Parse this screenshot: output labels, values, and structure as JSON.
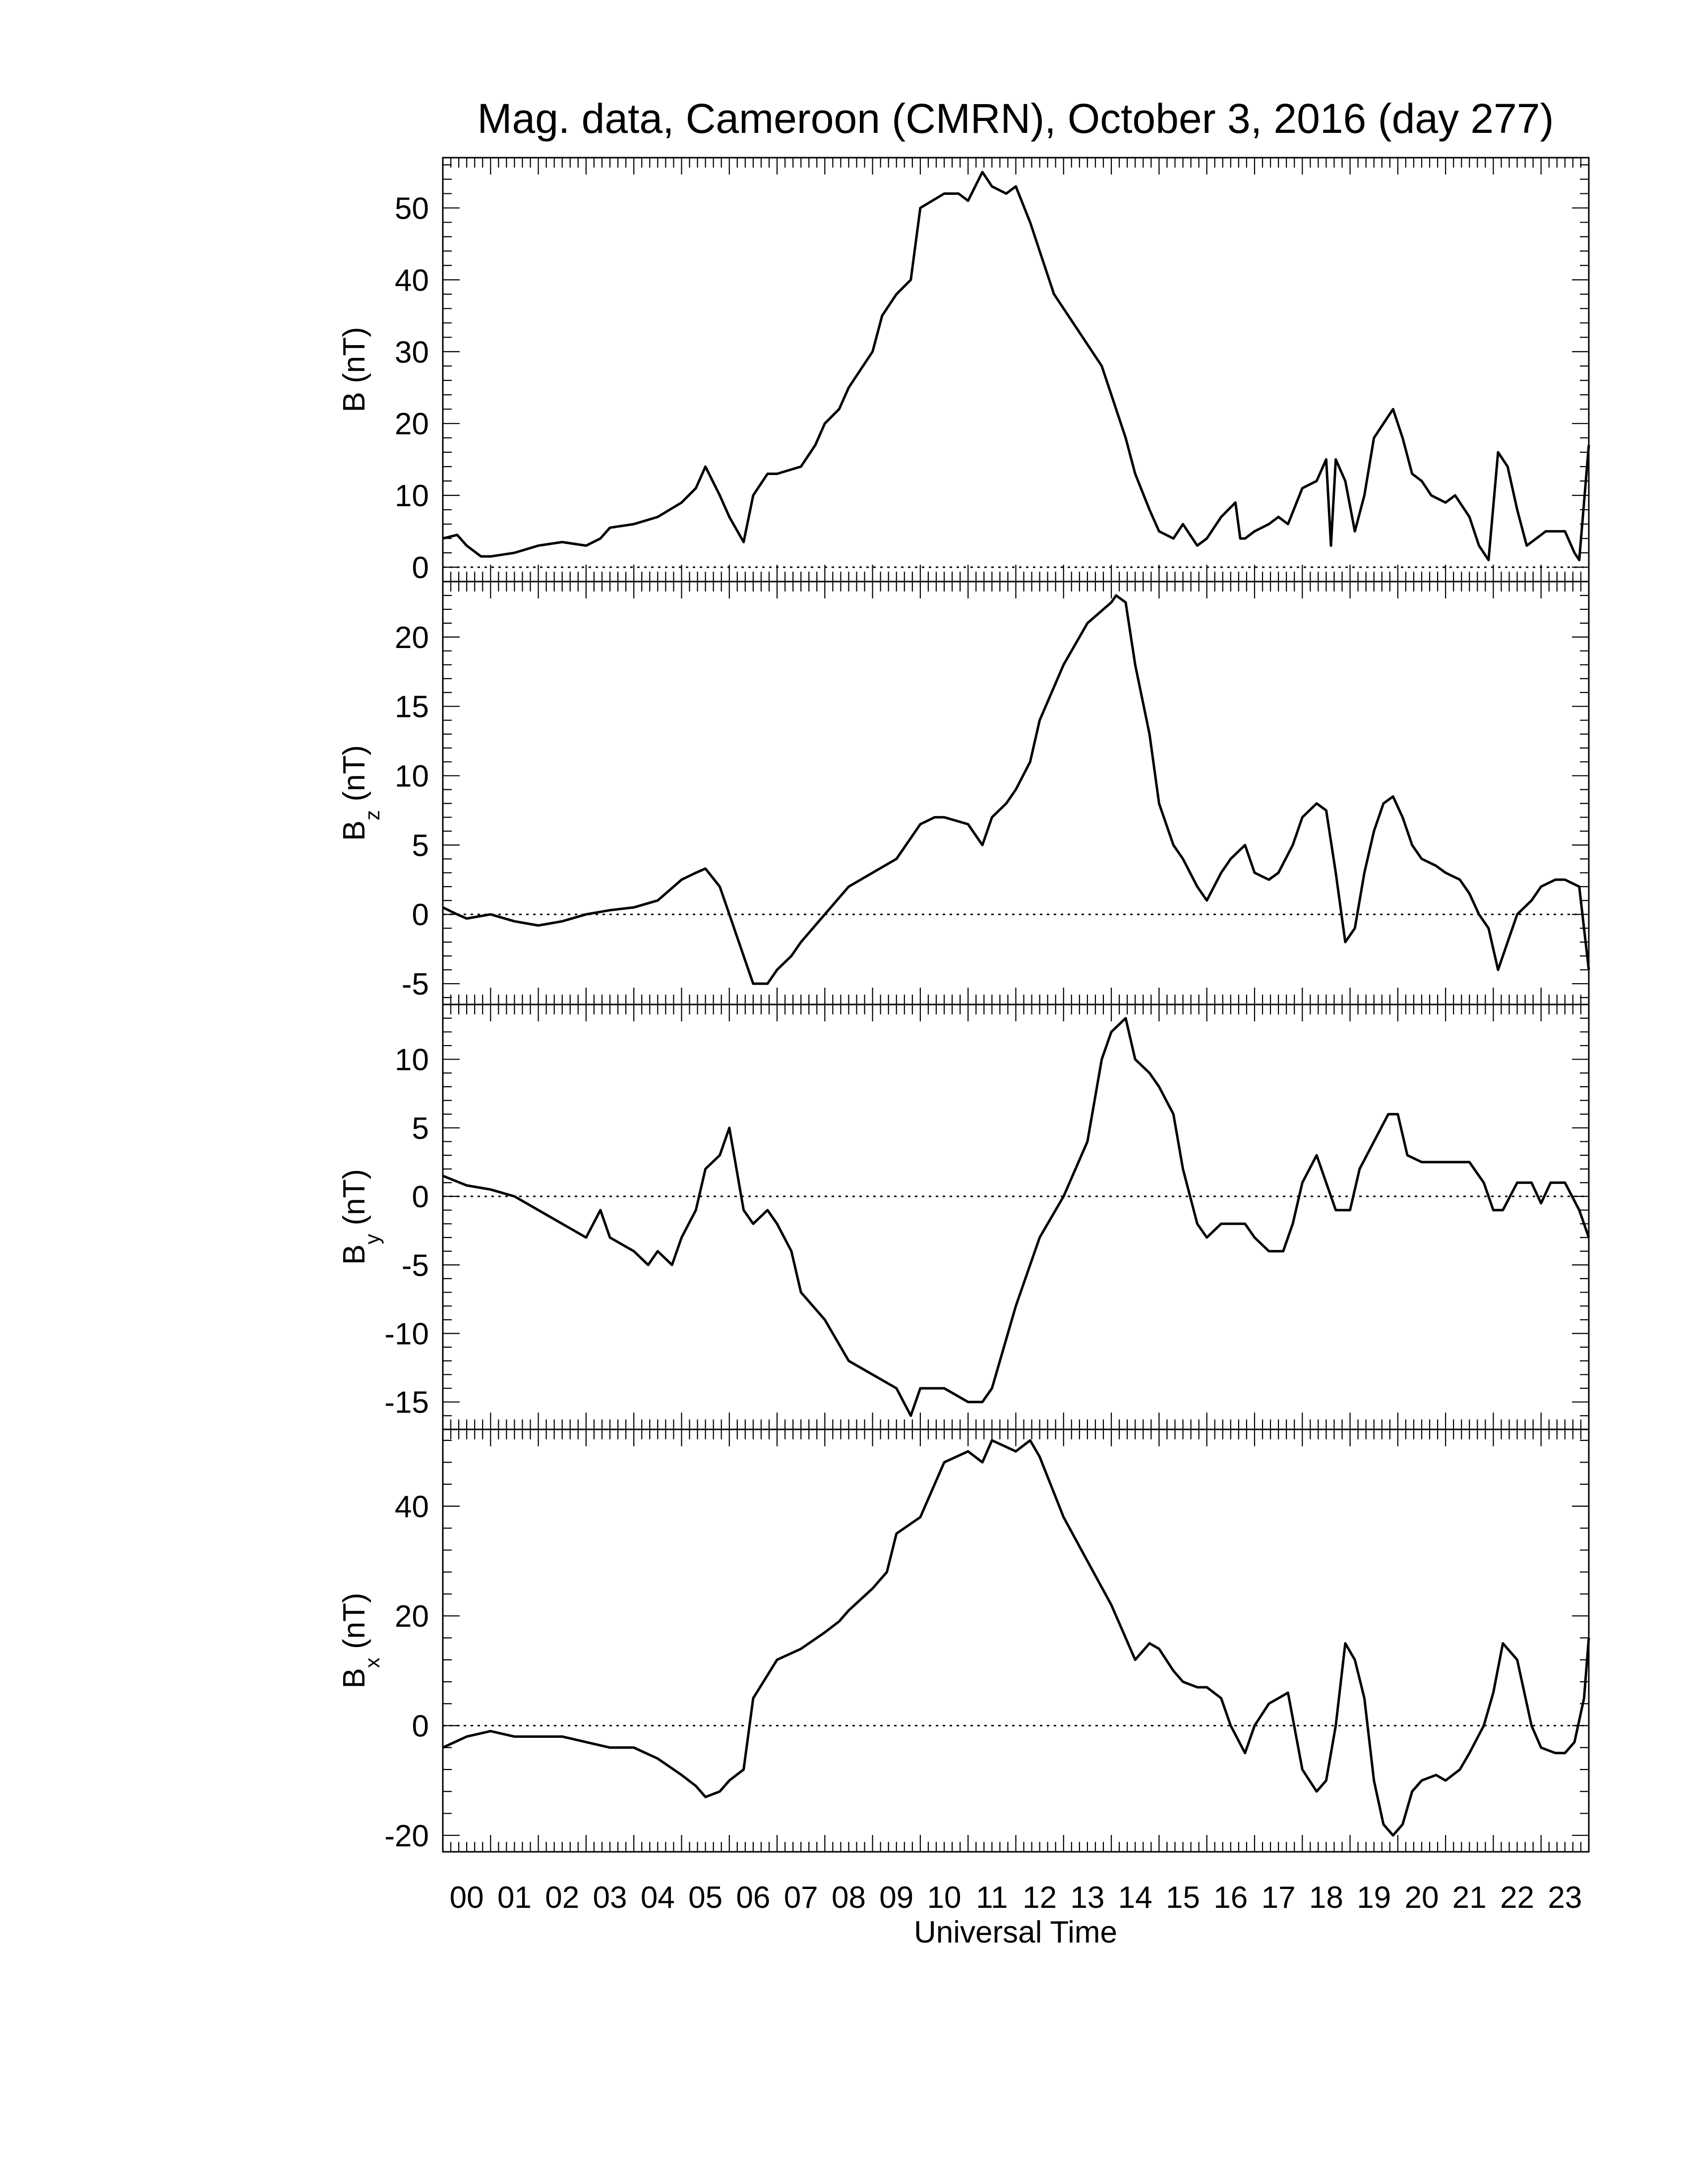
{
  "chart_data": {
    "type": "line",
    "title": "Mag. data, Cameroon (CMRN), October 3, 2016 (day 277)",
    "xlabel": "Universal Time",
    "x_unit": "hours",
    "xlim": [
      0,
      24
    ],
    "x_tick_labels": [
      "00",
      "01",
      "02",
      "03",
      "04",
      "05",
      "06",
      "07",
      "08",
      "09",
      "10",
      "11",
      "12",
      "13",
      "14",
      "15",
      "16",
      "17",
      "18",
      "19",
      "20",
      "21",
      "22",
      "23"
    ],
    "line_color": "#000000",
    "zero_line_style": "dotted",
    "panels": [
      {
        "name": "B",
        "ylabel_main": "B",
        "ylabel_sub": "",
        "ylabel_unit": "(nT)",
        "ylim": [
          -2,
          57
        ],
        "yticks": [
          0,
          10,
          20,
          30,
          40,
          50
        ],
        "zero_line": true,
        "x": [
          0,
          0.3,
          0.5,
          0.8,
          1,
          1.5,
          2,
          2.5,
          3,
          3.3,
          3.5,
          4,
          4.5,
          5,
          5.3,
          5.5,
          5.8,
          6,
          6.3,
          6.5,
          6.8,
          7,
          7.5,
          7.8,
          8,
          8.3,
          8.5,
          9,
          9.2,
          9.5,
          9.8,
          10,
          10.5,
          10.8,
          11,
          11.3,
          11.5,
          11.8,
          12,
          12.3,
          12.5,
          12.8,
          13,
          13.3,
          13.5,
          13.8,
          14,
          14.3,
          14.5,
          14.8,
          15,
          15.3,
          15.5,
          15.8,
          16,
          16.3,
          16.6,
          16.7,
          16.8,
          17,
          17.3,
          17.5,
          17.7,
          18,
          18.3,
          18.5,
          18.6,
          18.7,
          18.9,
          19.1,
          19.3,
          19.5,
          19.7,
          19.9,
          20.1,
          20.3,
          20.5,
          20.7,
          21,
          21.2,
          21.5,
          21.7,
          21.9,
          22.1,
          22.3,
          22.5,
          22.7,
          22.9,
          23.1,
          23.3,
          23.5,
          23.7,
          23.8,
          24
        ],
        "y": [
          4,
          4.5,
          3,
          1.5,
          1.5,
          2,
          3,
          3.5,
          3,
          4,
          5.5,
          6,
          7,
          9,
          11,
          14,
          10,
          7,
          3.5,
          10,
          13,
          13,
          14,
          17,
          20,
          22,
          25,
          30,
          35,
          38,
          40,
          50,
          52,
          52,
          51,
          55,
          53,
          52,
          53,
          48,
          44,
          38,
          36,
          33,
          31,
          28,
          24,
          18,
          13,
          8,
          5,
          4,
          6,
          3,
          4,
          7,
          9,
          4,
          4,
          5,
          6,
          7,
          6,
          11,
          12,
          15,
          3,
          15,
          12,
          5,
          10,
          18,
          20,
          22,
          18,
          13,
          12,
          10,
          9,
          10,
          7,
          3,
          1,
          16,
          14,
          8,
          3,
          4,
          5,
          5,
          5,
          2,
          1,
          17
        ]
      },
      {
        "name": "Bz",
        "ylabel_main": "B",
        "ylabel_sub": "z",
        "ylabel_unit": "(nT)",
        "ylim": [
          -6.5,
          24
        ],
        "yticks": [
          -5,
          0,
          5,
          10,
          15,
          20
        ],
        "zero_line": true,
        "x": [
          0,
          0.3,
          0.5,
          1,
          1.5,
          2,
          2.5,
          3,
          3.5,
          4,
          4.5,
          5,
          5.3,
          5.5,
          5.8,
          6,
          6.3,
          6.5,
          6.8,
          7,
          7.3,
          7.5,
          8,
          8.5,
          9,
          9.5,
          10,
          10.3,
          10.5,
          11,
          11.3,
          11.5,
          11.8,
          12,
          12.3,
          12.5,
          13,
          13.5,
          14,
          14.1,
          14.3,
          14.5,
          14.8,
          15,
          15.3,
          15.5,
          15.8,
          16,
          16.3,
          16.5,
          16.8,
          17,
          17.3,
          17.5,
          17.8,
          18,
          18.3,
          18.5,
          18.7,
          18.9,
          19.1,
          19.3,
          19.5,
          19.7,
          19.9,
          20.1,
          20.3,
          20.5,
          20.8,
          21,
          21.3,
          21.5,
          21.7,
          21.9,
          22.1,
          22.3,
          22.5,
          22.8,
          23,
          23.3,
          23.5,
          23.8,
          24
        ],
        "y": [
          0.5,
          0,
          -0.3,
          0,
          -0.5,
          -0.8,
          -0.5,
          0,
          0.3,
          0.5,
          1,
          2.5,
          3,
          3.3,
          2,
          0,
          -3,
          -5,
          -5,
          -4,
          -3,
          -2,
          0,
          2,
          3,
          4,
          6.5,
          7,
          7,
          6.5,
          5,
          7,
          8,
          9,
          11,
          14,
          18,
          21,
          22.5,
          23,
          22.5,
          18,
          13,
          8,
          5,
          4,
          2,
          1,
          3,
          4,
          5,
          3,
          2.5,
          3,
          5,
          7,
          8,
          7.5,
          3,
          -2,
          -1,
          3,
          6,
          8,
          8.5,
          7,
          5,
          4,
          3.5,
          3,
          2.5,
          1.5,
          0,
          -1,
          -4,
          -2,
          0,
          1,
          2,
          2.5,
          2.5,
          2,
          -4
        ]
      },
      {
        "name": "By",
        "ylabel_main": "B",
        "ylabel_sub": "y",
        "ylabel_unit": "(nT)",
        "ylim": [
          -17,
          14
        ],
        "yticks": [
          -15,
          -10,
          -5,
          0,
          5,
          10
        ],
        "zero_line": true,
        "x": [
          0,
          0.5,
          1,
          1.5,
          2,
          2.5,
          3,
          3.3,
          3.5,
          4,
          4.3,
          4.5,
          4.8,
          5,
          5.3,
          5.5,
          5.8,
          6,
          6.3,
          6.5,
          6.8,
          7,
          7.3,
          7.5,
          8,
          8.5,
          9,
          9.5,
          9.8,
          10,
          10.3,
          10.5,
          11,
          11.3,
          11.5,
          12,
          12.5,
          13,
          13.5,
          13.8,
          14,
          14.3,
          14.5,
          14.8,
          15,
          15.3,
          15.5,
          15.8,
          16,
          16.3,
          16.6,
          16.8,
          17,
          17.3,
          17.6,
          17.8,
          18,
          18.3,
          18.5,
          18.7,
          19,
          19.2,
          19.5,
          19.8,
          20,
          20.2,
          20.5,
          20.8,
          21,
          21.5,
          21.8,
          22,
          22.2,
          22.5,
          22.8,
          23,
          23.2,
          23.5,
          23.8,
          24
        ],
        "y": [
          1.5,
          0.8,
          0.5,
          0,
          -1,
          -2,
          -3,
          -1,
          -3,
          -4,
          -5,
          -4,
          -5,
          -3,
          -1,
          2,
          3,
          5,
          -1,
          -2,
          -1,
          -2,
          -4,
          -7,
          -9,
          -12,
          -13,
          -14,
          -16,
          -14,
          -14,
          -14,
          -15,
          -15,
          -14,
          -8,
          -3,
          0,
          4,
          10,
          12,
          13,
          10,
          9,
          8,
          6,
          2,
          -2,
          -3,
          -2,
          -2,
          -2,
          -3,
          -4,
          -4,
          -2,
          1,
          3,
          1,
          -1,
          -1,
          2,
          4,
          6,
          6,
          3,
          2.5,
          2.5,
          2.5,
          2.5,
          1,
          -1,
          -1,
          1,
          1,
          -0.5,
          1,
          1,
          -1,
          -3
        ]
      },
      {
        "name": "Bx",
        "ylabel_main": "B",
        "ylabel_sub": "x",
        "ylabel_unit": "(nT)",
        "ylim": [
          -23,
          54
        ],
        "yticks": [
          -20,
          0,
          20,
          40
        ],
        "zero_line": true,
        "x": [
          0,
          0.5,
          1,
          1.5,
          2,
          2.5,
          3,
          3.5,
          4,
          4.5,
          5,
          5.3,
          5.5,
          5.8,
          6,
          6.3,
          6.5,
          7,
          7.5,
          8,
          8.3,
          8.5,
          9,
          9.3,
          9.5,
          10,
          10.5,
          11,
          11.3,
          11.5,
          12,
          12.3,
          12.5,
          13,
          13.5,
          14,
          14.3,
          14.5,
          14.8,
          15,
          15.3,
          15.5,
          15.8,
          16,
          16.3,
          16.5,
          16.8,
          17,
          17.3,
          17.5,
          17.7,
          18,
          18.3,
          18.5,
          18.7,
          18.9,
          19.1,
          19.3,
          19.5,
          19.7,
          19.9,
          20.1,
          20.3,
          20.5,
          20.8,
          21,
          21.3,
          21.5,
          21.8,
          22,
          22.2,
          22.5,
          22.8,
          23,
          23.3,
          23.5,
          23.7,
          23.9,
          24
        ],
        "y": [
          -4,
          -2,
          -1,
          -2,
          -2,
          -2,
          -3,
          -4,
          -4,
          -6,
          -9,
          -11,
          -13,
          -12,
          -10,
          -8,
          5,
          12,
          14,
          17,
          19,
          21,
          25,
          28,
          35,
          38,
          48,
          50,
          48,
          52,
          50,
          52,
          49,
          38,
          30,
          22,
          16,
          12,
          15,
          14,
          10,
          8,
          7,
          7,
          5,
          0,
          -5,
          0,
          4,
          5,
          6,
          -8,
          -12,
          -10,
          0,
          15,
          12,
          5,
          -10,
          -18,
          -20,
          -18,
          -12,
          -10,
          -9,
          -10,
          -8,
          -5,
          0,
          6,
          15,
          12,
          0,
          -4,
          -5,
          -5,
          -3,
          5,
          16
        ]
      }
    ]
  }
}
